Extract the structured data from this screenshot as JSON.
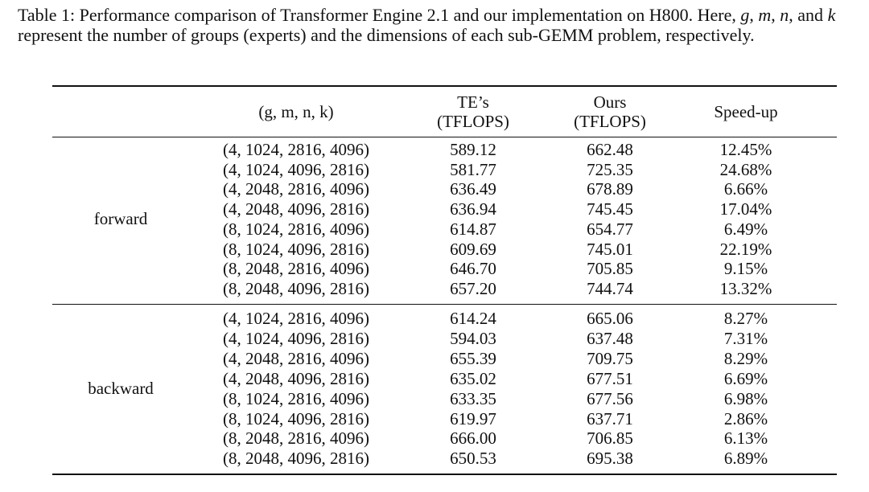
{
  "caption": [
    "Table 1: Performance comparison of Transformer Engine 2.1 and our implementation on H800. Here, ",
    "g",
    ", ",
    "m",
    ", ",
    "n",
    ", and ",
    "k",
    " represent the number of groups (experts) and the dimensions of each sub-GEMM problem, respectively."
  ],
  "table": {
    "header": [
      [
        "(g, m, n, k)"
      ],
      [
        "TE’s",
        "(TFLOPS)"
      ],
      [
        "Ours",
        "(TFLOPS)"
      ],
      [
        "Speed-up"
      ]
    ],
    "groups": [
      {
        "label": "forward",
        "rows": [
          [
            "(4, 1024, 2816, 4096)",
            "589.12",
            "662.48",
            "12.45%"
          ],
          [
            "(4, 1024, 4096, 2816)",
            "581.77",
            "725.35",
            "24.68%"
          ],
          [
            "(4, 2048, 2816, 4096)",
            "636.49",
            "678.89",
            "6.66%"
          ],
          [
            "(4, 2048, 4096, 2816)",
            "636.94",
            "745.45",
            "17.04%"
          ],
          [
            "(8, 1024, 2816, 4096)",
            "614.87",
            "654.77",
            "6.49%"
          ],
          [
            "(8, 1024, 4096, 2816)",
            "609.69",
            "745.01",
            "22.19%"
          ],
          [
            "(8, 2048, 2816, 4096)",
            "646.70",
            "705.85",
            "9.15%"
          ],
          [
            "(8, 2048, 4096, 2816)",
            "657.20",
            "744.74",
            "13.32%"
          ]
        ]
      },
      {
        "label": "backward",
        "rows": [
          [
            "(4, 1024, 2816, 4096)",
            "614.24",
            "665.06",
            "8.27%"
          ],
          [
            "(4, 1024, 4096, 2816)",
            "594.03",
            "637.48",
            "7.31%"
          ],
          [
            "(4, 2048, 2816, 4096)",
            "655.39",
            "709.75",
            "8.29%"
          ],
          [
            "(4, 2048, 4096, 2816)",
            "635.02",
            "677.51",
            "6.69%"
          ],
          [
            "(8, 1024, 2816, 4096)",
            "633.35",
            "677.56",
            "6.98%"
          ],
          [
            "(8, 1024, 4096, 2816)",
            "619.97",
            "637.71",
            "2.86%"
          ],
          [
            "(8, 2048, 2816, 4096)",
            "666.00",
            "706.85",
            "6.13%"
          ],
          [
            "(8, 2048, 4096, 2816)",
            "650.53",
            "695.38",
            "6.89%"
          ]
        ]
      }
    ]
  }
}
